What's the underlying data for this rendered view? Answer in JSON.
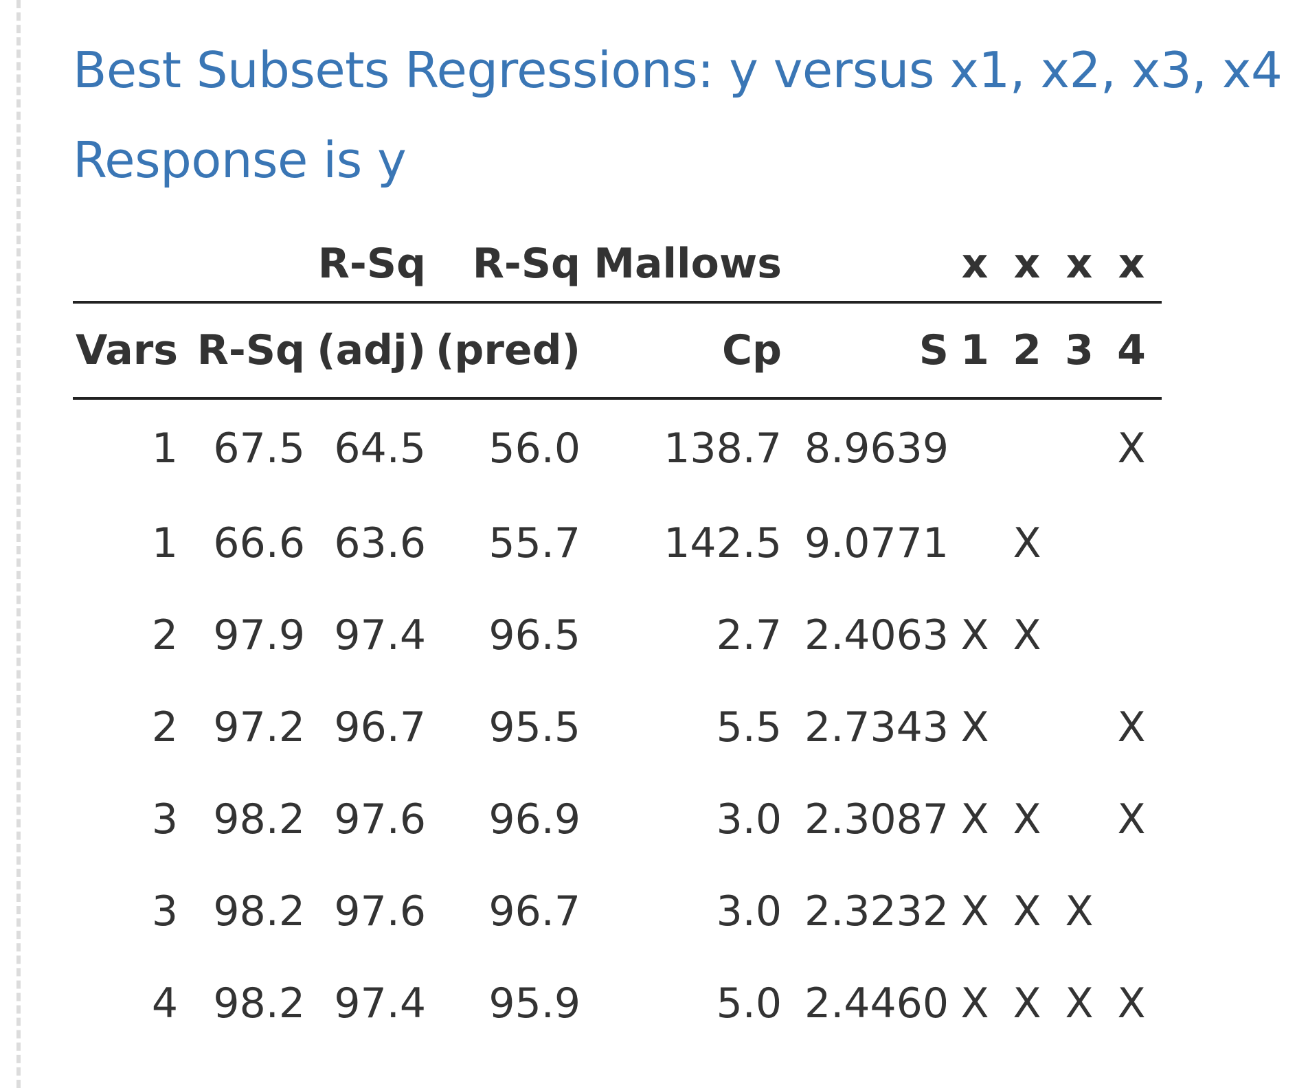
{
  "title_line1": "Best Subsets Regressions: y versus x1, x2, x3, x4",
  "title_line2": "Response is y",
  "table": {
    "header_top": {
      "vars": "",
      "rsq": "",
      "rsq_adj": "R-Sq",
      "rsq_pred": "R-Sq",
      "cp": "Mallows",
      "s": "",
      "x1": "x",
      "x2": "x",
      "x3": "x",
      "x4": "x"
    },
    "header_bottom": {
      "vars": "Vars",
      "rsq": "R-Sq",
      "rsq_adj": "(adj)",
      "rsq_pred": "(pred)",
      "cp": "Cp",
      "s": "S",
      "x1": "1",
      "x2": "2",
      "x3": "3",
      "x4": "4"
    },
    "rows": [
      {
        "vars": "1",
        "rsq": "67.5",
        "rsq_adj": "64.5",
        "rsq_pred": "56.0",
        "cp": "138.7",
        "s": "8.9639",
        "x1": "",
        "x2": "",
        "x3": "",
        "x4": "X"
      },
      {
        "vars": "1",
        "rsq": "66.6",
        "rsq_adj": "63.6",
        "rsq_pred": "55.7",
        "cp": "142.5",
        "s": "9.0771",
        "x1": "",
        "x2": "X",
        "x3": "",
        "x4": ""
      },
      {
        "vars": "2",
        "rsq": "97.9",
        "rsq_adj": "97.4",
        "rsq_pred": "96.5",
        "cp": "2.7",
        "s": "2.4063",
        "x1": "X",
        "x2": "X",
        "x3": "",
        "x4": ""
      },
      {
        "vars": "2",
        "rsq": "97.2",
        "rsq_adj": "96.7",
        "rsq_pred": "95.5",
        "cp": "5.5",
        "s": "2.7343",
        "x1": "X",
        "x2": "",
        "x3": "",
        "x4": "X"
      },
      {
        "vars": "3",
        "rsq": "98.2",
        "rsq_adj": "97.6",
        "rsq_pred": "96.9",
        "cp": "3.0",
        "s": "2.3087",
        "x1": "X",
        "x2": "X",
        "x3": "",
        "x4": "X"
      },
      {
        "vars": "3",
        "rsq": "98.2",
        "rsq_adj": "97.6",
        "rsq_pred": "96.7",
        "cp": "3.0",
        "s": "2.3232",
        "x1": "X",
        "x2": "X",
        "x3": "X",
        "x4": ""
      },
      {
        "vars": "4",
        "rsq": "98.2",
        "rsq_adj": "97.4",
        "rsq_pred": "95.9",
        "cp": "5.0",
        "s": "2.4460",
        "x1": "X",
        "x2": "X",
        "x3": "X",
        "x4": "X"
      }
    ]
  }
}
